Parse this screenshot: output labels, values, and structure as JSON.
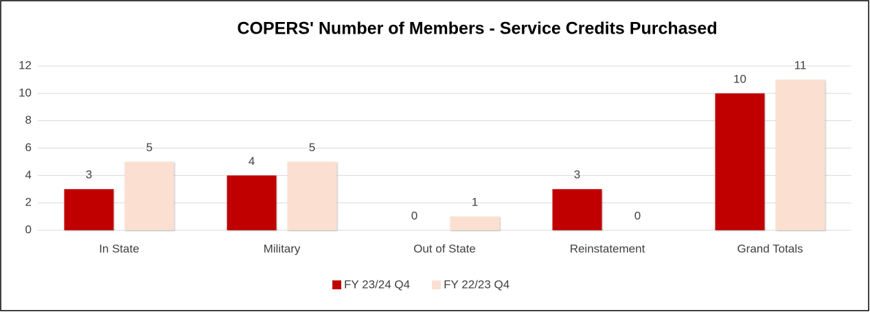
{
  "chart_data": {
    "type": "bar",
    "title": "COPERS' Number of Members - Service Credits Purchased",
    "categories": [
      "In State",
      "Military",
      "Out of State",
      "Reinstatement",
      "Grand Totals"
    ],
    "series": [
      {
        "name": "FY 23/24 Q4",
        "color": "#c00000",
        "values": [
          3,
          4,
          0,
          3,
          10
        ]
      },
      {
        "name": "FY 22/23 Q4",
        "color": "#fbe0d1",
        "values": [
          5,
          5,
          1,
          0,
          11
        ]
      }
    ],
    "ylim": [
      0,
      12
    ],
    "yticks": [
      0,
      2,
      4,
      6,
      8,
      10,
      12
    ],
    "grid": true,
    "legend": "bottom"
  }
}
